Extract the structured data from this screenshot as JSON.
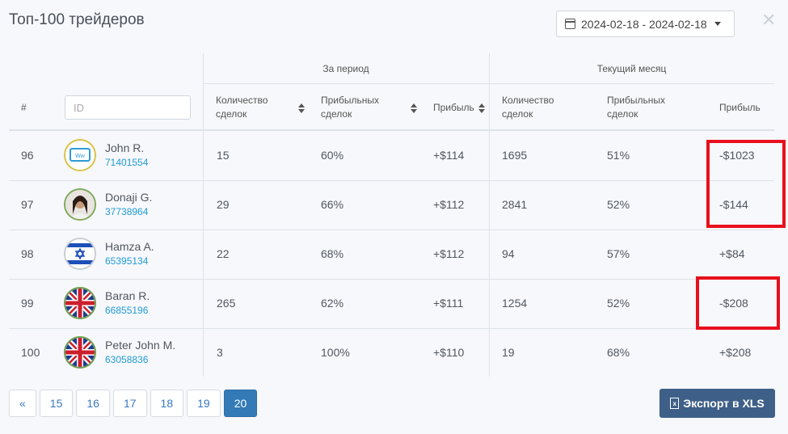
{
  "title": "Топ-100 трейдеров",
  "date_range": "2024-02-18 - 2024-02-18",
  "groups": {
    "period": "За период",
    "month": "Текущий месяц"
  },
  "headers": {
    "rank": "#",
    "id_placeholder": "ID",
    "deals_l1": "Количество",
    "deals_l2": "сделок",
    "prof_l1": "Прибыльных",
    "prof_l2": "сделок",
    "profit": "Прибыль"
  },
  "rows": [
    {
      "rank": "96",
      "name": "John R.",
      "id": "71401554",
      "p_deals": "15",
      "p_pct": "60%",
      "p_profit": "+$114",
      "m_deals": "1695",
      "m_pct": "51%",
      "m_profit": "-$1023",
      "avatar": "ww-logo"
    },
    {
      "rank": "97",
      "name": "Donaji G.",
      "id": "37738964",
      "p_deals": "29",
      "p_pct": "66%",
      "p_profit": "+$112",
      "m_deals": "2841",
      "m_pct": "52%",
      "m_profit": "-$144",
      "avatar": "photo"
    },
    {
      "rank": "98",
      "name": "Hamza A.",
      "id": "65395134",
      "p_deals": "22",
      "p_pct": "68%",
      "p_profit": "+$112",
      "m_deals": "94",
      "m_pct": "57%",
      "m_profit": "+$84",
      "avatar": "israel-flag"
    },
    {
      "rank": "99",
      "name": "Baran R.",
      "id": "66855196",
      "p_deals": "265",
      "p_pct": "62%",
      "p_profit": "+$111",
      "m_deals": "1254",
      "m_pct": "52%",
      "m_profit": "-$208",
      "avatar": "uk-flag"
    },
    {
      "rank": "100",
      "name": "Peter John M.",
      "id": "63058836",
      "p_deals": "3",
      "p_pct": "100%",
      "p_profit": "+$110",
      "m_deals": "19",
      "m_pct": "68%",
      "m_profit": "+$208",
      "avatar": "uk-flag"
    }
  ],
  "pager": [
    "«",
    "15",
    "16",
    "17",
    "18",
    "19",
    "20"
  ],
  "pager_active": "20",
  "export_label": "Экспорт в XLS",
  "colors": {
    "accent": "#337ab7",
    "link": "#1f9bd6",
    "highlight": "#e8101c",
    "export_bg": "#3e5f88"
  }
}
